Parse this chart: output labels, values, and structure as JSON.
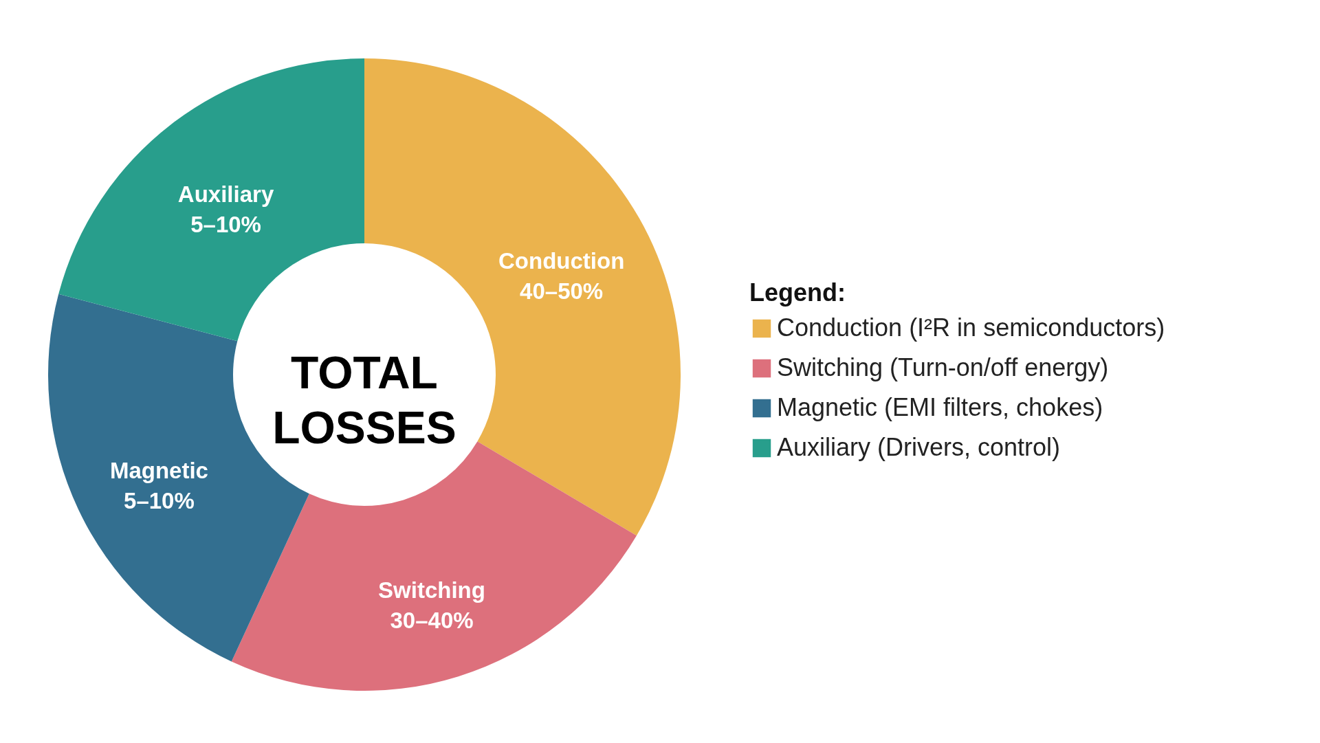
{
  "chart_data": {
    "type": "donut",
    "title": "TOTAL LOSSES",
    "legend_title": "Legend:",
    "categories": [
      "Conduction (I²R in semiconductors)",
      "Switching (Turn-on/off energy)",
      "Magnetic (EMI filters, chokes)",
      "Auxiliary (Drivers, control)"
    ],
    "values": [
      33.5,
      23.4,
      22.2,
      20.9
    ],
    "annotations": [
      "Conduction\n40–50%",
      "Switching\n30–40%",
      "Magnetic\n5–10%",
      "Auxiliary\n5–10%"
    ],
    "colors": [
      "#ebb34d",
      "#dd707c",
      "#336f90",
      "#289e8c"
    ],
    "legend": "right"
  }
}
